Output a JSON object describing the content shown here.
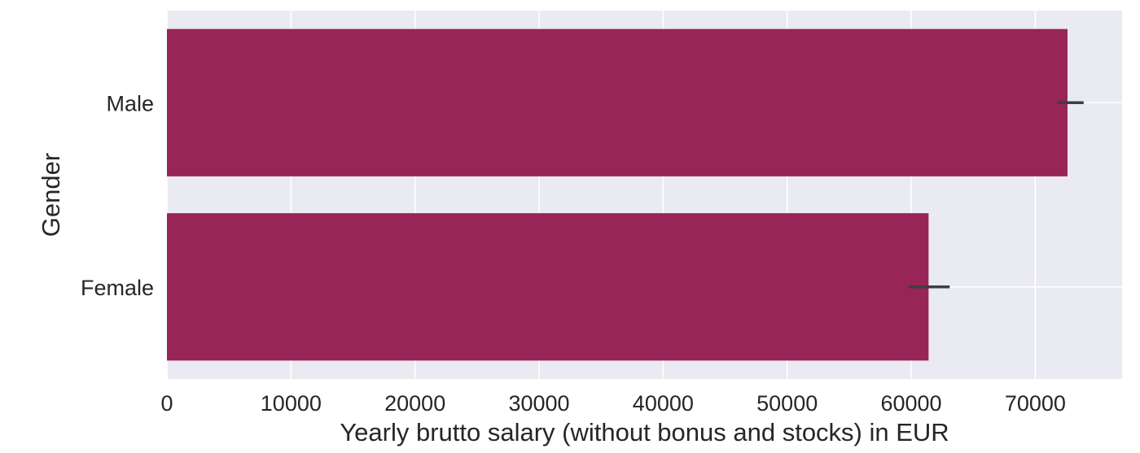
{
  "chart_data": {
    "type": "bar",
    "orientation": "horizontal",
    "categories": [
      "Male",
      "Female"
    ],
    "values": [
      72600,
      61400
    ],
    "error_bars": [
      [
        71800,
        73900
      ],
      [
        59800,
        63100
      ]
    ],
    "xlabel": "Yearly brutto salary (without bonus and stocks) in EUR",
    "ylabel": "Gender",
    "xlim": [
      0,
      77000
    ],
    "xticks": [
      0,
      10000,
      20000,
      30000,
      40000,
      50000,
      60000,
      70000
    ],
    "grid": true,
    "legend": "none",
    "colors": {
      "bar": "#982558",
      "background": "#eaeaf2",
      "grid": "#ffffff",
      "errorbar": "#3f3f3f"
    }
  }
}
